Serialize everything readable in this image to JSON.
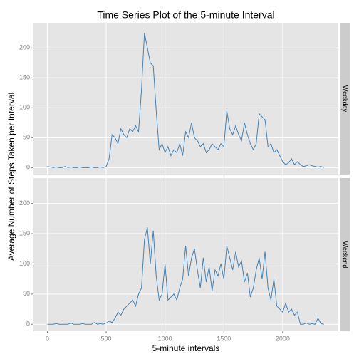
{
  "chart_data": {
    "type": "line",
    "title": "Time Series Plot of the 5-minute Interval",
    "xlabel": "5-minute intervals",
    "ylabel": "Average Number of Steps Taken per Interval",
    "color": "#4682b4",
    "grid": true,
    "xlim": [
      -117.75,
      2472.75
    ],
    "ylim": [
      -11.5,
      242
    ],
    "xticks": [
      0,
      500,
      1000,
      1500,
      2000
    ],
    "yticks": [
      0,
      50,
      100,
      150,
      200
    ],
    "x": [
      0,
      25,
      50,
      75,
      100,
      125,
      150,
      175,
      200,
      225,
      250,
      275,
      300,
      325,
      350,
      375,
      400,
      425,
      450,
      475,
      500,
      525,
      550,
      575,
      600,
      625,
      650,
      675,
      700,
      725,
      750,
      775,
      800,
      825,
      850,
      875,
      900,
      925,
      950,
      975,
      1000,
      1025,
      1050,
      1075,
      1100,
      1125,
      1150,
      1175,
      1200,
      1225,
      1250,
      1275,
      1300,
      1325,
      1350,
      1375,
      1400,
      1425,
      1450,
      1475,
      1500,
      1525,
      1550,
      1575,
      1600,
      1625,
      1650,
      1675,
      1700,
      1725,
      1750,
      1775,
      1800,
      1825,
      1850,
      1875,
      1900,
      1925,
      1950,
      1975,
      2000,
      2025,
      2050,
      2075,
      2100,
      2125,
      2150,
      2175,
      2200,
      2225,
      2250,
      2275,
      2300,
      2325,
      2350
    ],
    "series": [
      {
        "name": "Weekday",
        "values": [
          2,
          1,
          0,
          1,
          0,
          0,
          2,
          0,
          1,
          0,
          0,
          1,
          0,
          0,
          0,
          1,
          0,
          0,
          1,
          0,
          2,
          15,
          55,
          50,
          40,
          65,
          55,
          50,
          65,
          60,
          70,
          60,
          130,
          225,
          200,
          175,
          170,
          95,
          30,
          40,
          25,
          35,
          20,
          30,
          25,
          40,
          20,
          60,
          50,
          75,
          50,
          45,
          35,
          40,
          25,
          30,
          40,
          35,
          30,
          40,
          35,
          95,
          65,
          55,
          70,
          55,
          45,
          75,
          55,
          40,
          30,
          40,
          90,
          85,
          80,
          35,
          40,
          25,
          30,
          20,
          10,
          5,
          8,
          15,
          5,
          10,
          5,
          2,
          3,
          5,
          3,
          2,
          1,
          2,
          0
        ]
      },
      {
        "name": "Weekend",
        "values": [
          0,
          0,
          0,
          1,
          0,
          0,
          0,
          0,
          2,
          0,
          0,
          0,
          1,
          0,
          0,
          0,
          3,
          0,
          1,
          0,
          2,
          5,
          3,
          10,
          20,
          15,
          25,
          30,
          35,
          40,
          30,
          50,
          60,
          140,
          160,
          100,
          155,
          80,
          40,
          50,
          100,
          40,
          45,
          50,
          40,
          60,
          75,
          130,
          80,
          110,
          125,
          90,
          60,
          110,
          70,
          95,
          55,
          90,
          80,
          100,
          75,
          130,
          110,
          90,
          120,
          95,
          105,
          70,
          85,
          45,
          60,
          90,
          110,
          75,
          120,
          60,
          40,
          75,
          30,
          25,
          20,
          35,
          20,
          25,
          15,
          20,
          0,
          0,
          2,
          0,
          1,
          0,
          10,
          1,
          0
        ]
      }
    ]
  }
}
